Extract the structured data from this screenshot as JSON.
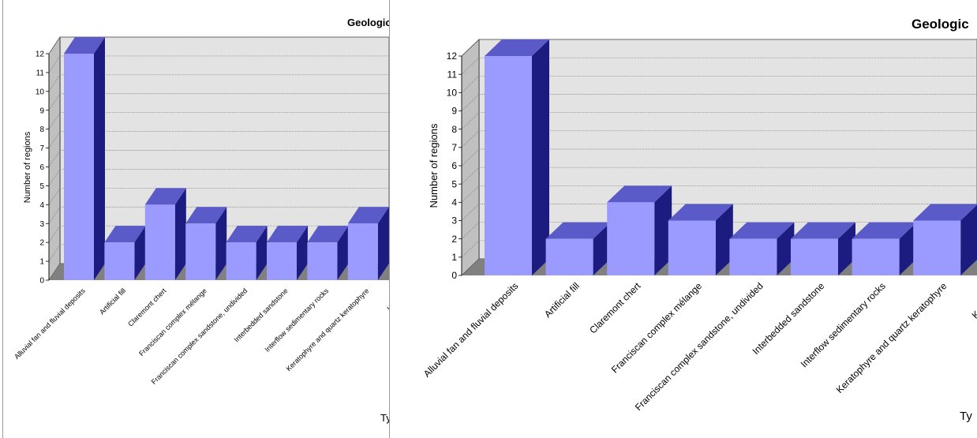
{
  "colors": {
    "bar_front": "#9b9bff",
    "bar_top": "#5a5ac8",
    "bar_side": "#1c1c80",
    "plot_back": "#e3e3e3",
    "plot_wall": "#c0c0c0",
    "plot_floor": "#808080",
    "grid": "#777777"
  },
  "chart_data": [
    {
      "type": "bar",
      "title": "Geologic",
      "ylabel": "Number of regions",
      "xlabel": "Ty",
      "ylim": [
        0,
        12
      ],
      "yticks": [
        "0",
        "1",
        "2",
        "3",
        "4",
        "5",
        "6",
        "7",
        "8",
        "9",
        "10",
        "11",
        "12"
      ],
      "grid": true,
      "categories": [
        "Alluvial fan and fluvial deposits",
        "Artificial fill",
        "Claremont chert",
        "Franciscan complex mélange",
        "Franciscan complex sandstone, undivided",
        "Interbedded sandstone",
        "Interflow sedimentary rocks",
        "Keratophyre and quartz keratophyre",
        "Knoxville"
      ],
      "values": [
        12,
        2,
        4,
        3,
        2,
        2,
        2,
        3,
        null
      ]
    },
    {
      "type": "bar",
      "title": "Geologic",
      "ylabel": "Number of regions",
      "xlabel": "Ty",
      "ylim": [
        0,
        12
      ],
      "yticks": [
        "0",
        "1",
        "2",
        "3",
        "4",
        "5",
        "6",
        "7",
        "8",
        "9",
        "10",
        "11",
        "12"
      ],
      "grid": true,
      "categories": [
        "Alluvial fan and fluvial deposits",
        "Artificial fill",
        "Claremont chert",
        "Franciscan complex mélange",
        "Franciscan complex sandstone, undivided",
        "Interbedded sandstone",
        "Interflow sedimentary rocks",
        "Keratophyre and quartz keratophyre",
        "Knoxville F"
      ],
      "values": [
        12,
        2,
        4,
        3,
        2,
        2,
        2,
        3,
        null
      ]
    }
  ]
}
